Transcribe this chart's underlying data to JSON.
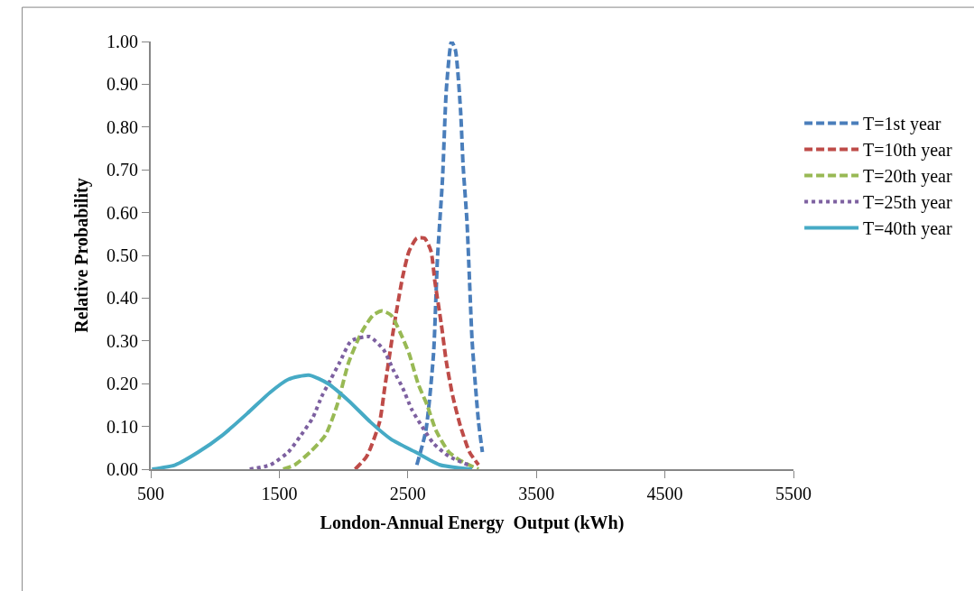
{
  "chart_data": {
    "type": "line",
    "xlabel": "London-Annual Energy  Output (kWh)",
    "ylabel": "Relative Probability",
    "xlim": [
      500,
      5500
    ],
    "xticks": [
      500,
      1500,
      2500,
      3500,
      4500,
      5500
    ],
    "ylim": [
      0,
      1
    ],
    "yticks": [
      {
        "value": 0,
        "label": "0.00"
      },
      {
        "value": 0.1,
        "label": "0.10"
      },
      {
        "value": 0.2,
        "label": "0.20"
      },
      {
        "value": 0.3,
        "label": "0.30"
      },
      {
        "value": 0.4,
        "label": "0.40"
      },
      {
        "value": 0.5,
        "label": "0.50"
      },
      {
        "value": 0.6,
        "label": "0.60"
      },
      {
        "value": 0.7,
        "label": "0.70"
      },
      {
        "value": 0.8,
        "label": "0.80"
      },
      {
        "value": 0.9,
        "label": "0.90"
      },
      {
        "value": 1,
        "label": "1.00"
      }
    ],
    "legend": "right",
    "marker": "none",
    "series": [
      {
        "name": "T=1st year",
        "color": "#4a7ebb",
        "line_style": "dashed",
        "x": [
          2570,
          2640,
          2700,
          2730,
          2770,
          2800,
          2840,
          2870,
          2910,
          2930,
          2960,
          2980,
          3000,
          3030,
          3050,
          3080
        ],
        "values": [
          0.01,
          0.09,
          0.27,
          0.49,
          0.68,
          0.89,
          1.0,
          0.98,
          0.84,
          0.71,
          0.58,
          0.44,
          0.3,
          0.18,
          0.11,
          0.04
        ]
      },
      {
        "name": "T=10th year",
        "color": "#be4b48",
        "line_style": "dashed",
        "x": [
          2090,
          2180,
          2280,
          2320,
          2390,
          2460,
          2510,
          2570,
          2630,
          2680,
          2710,
          2760,
          2800,
          2850,
          2910,
          2980,
          3050
        ],
        "values": [
          0.0,
          0.03,
          0.11,
          0.19,
          0.33,
          0.45,
          0.51,
          0.54,
          0.54,
          0.51,
          0.44,
          0.34,
          0.25,
          0.17,
          0.1,
          0.04,
          0.01
        ]
      },
      {
        "name": "T=20th year",
        "color": "#98b954",
        "line_style": "dashed",
        "x": [
          1530,
          1620,
          1740,
          1860,
          1950,
          2040,
          2140,
          2230,
          2300,
          2370,
          2440,
          2510,
          2580,
          2650,
          2720,
          2820,
          2910,
          3050
        ],
        "values": [
          0.0,
          0.01,
          0.04,
          0.08,
          0.15,
          0.25,
          0.32,
          0.36,
          0.37,
          0.36,
          0.32,
          0.27,
          0.2,
          0.15,
          0.09,
          0.04,
          0.02,
          0.0
        ]
      },
      {
        "name": "T=25th year",
        "color": "#7d60a0",
        "line_style": "dotted",
        "x": [
          1270,
          1430,
          1570,
          1670,
          1760,
          1830,
          1900,
          1970,
          2060,
          2200,
          2310,
          2390,
          2460,
          2530,
          2610,
          2700,
          2820,
          2970
        ],
        "values": [
          0.0,
          0.01,
          0.04,
          0.08,
          0.12,
          0.17,
          0.21,
          0.25,
          0.3,
          0.31,
          0.28,
          0.23,
          0.19,
          0.14,
          0.1,
          0.06,
          0.03,
          0.01
        ]
      },
      {
        "name": "T=40th year",
        "color": "#46aac5",
        "line_style": "solid",
        "x": [
          510,
          690,
          870,
          1060,
          1250,
          1430,
          1570,
          1730,
          1880,
          2040,
          2210,
          2370,
          2560,
          2750,
          3000
        ],
        "values": [
          0.0,
          0.01,
          0.04,
          0.08,
          0.13,
          0.18,
          0.21,
          0.22,
          0.2,
          0.16,
          0.11,
          0.07,
          0.04,
          0.01,
          0.0
        ]
      }
    ]
  }
}
